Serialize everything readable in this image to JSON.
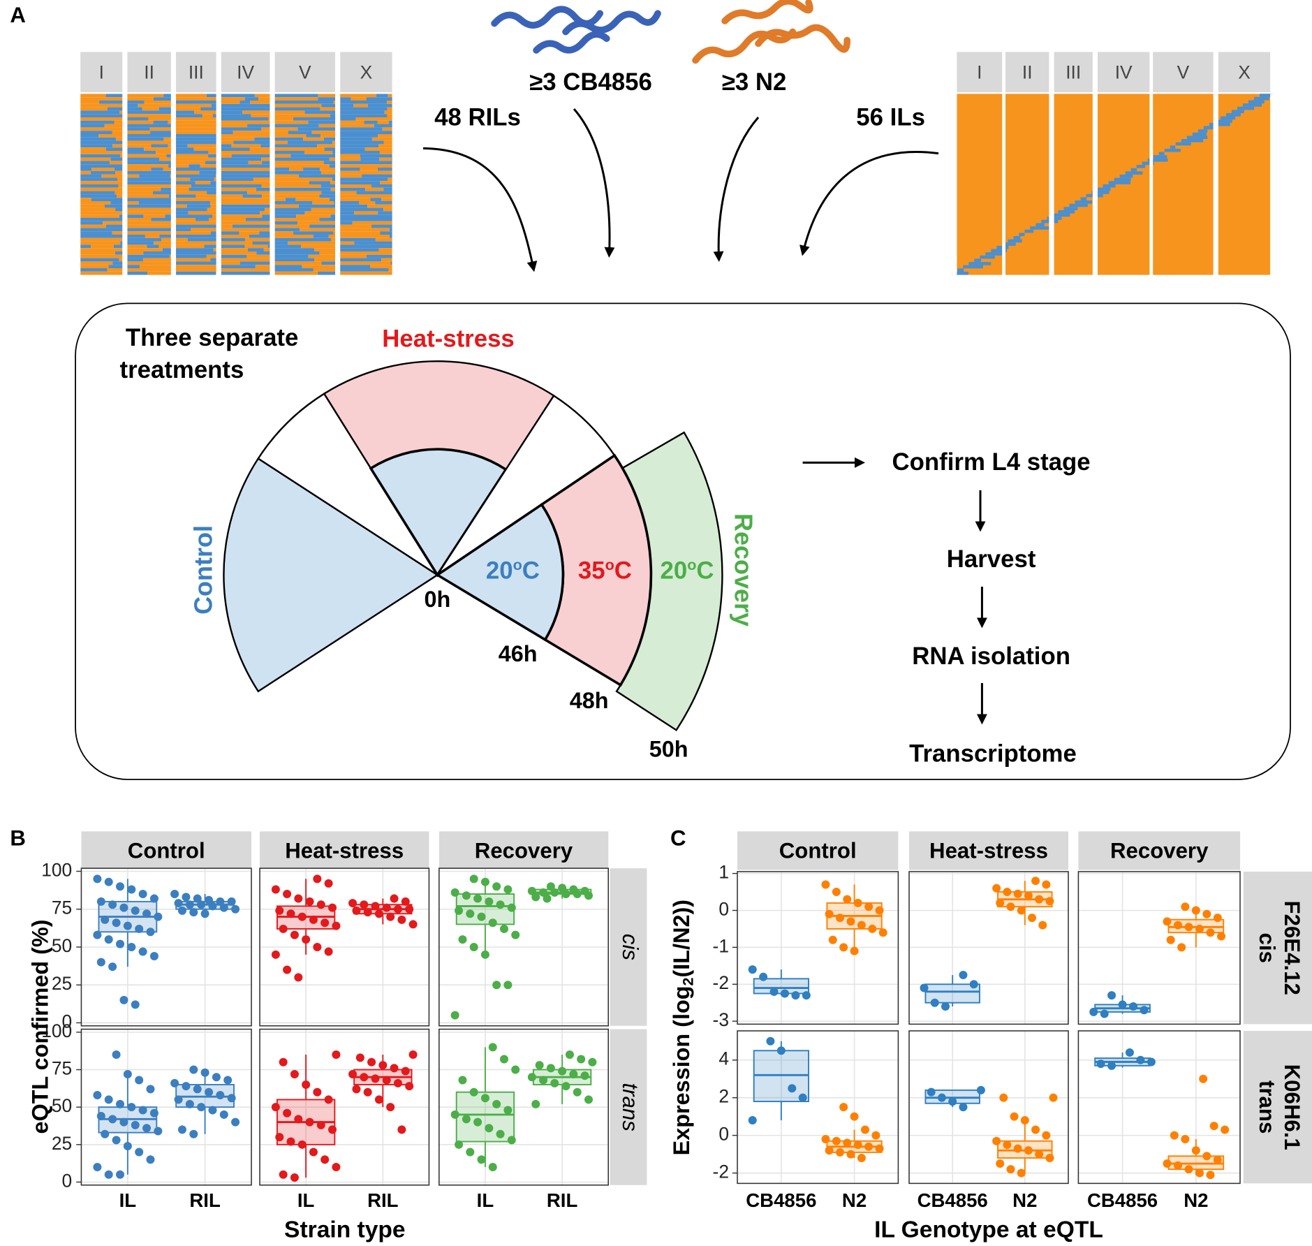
{
  "panel_a": {
    "label": "A",
    "left_chromosomes": [
      "I",
      "II",
      "III",
      "IV",
      "V",
      "X"
    ],
    "right_chromosomes": [
      "I",
      "II",
      "III",
      "IV",
      "V",
      "X"
    ],
    "cb4856": "≥3 CB4856",
    "n2": "≥3 N2",
    "rils": "48 RILs",
    "ils": "56 ILs",
    "treatments": [
      "Three separate",
      "treatments"
    ],
    "heat_stress": "Heat-stress",
    "control": "Control",
    "recovery": "Recovery",
    "temps": [
      [
        "20",
        "o",
        "C"
      ],
      [
        "35",
        "o",
        "C"
      ],
      [
        "20",
        "o",
        "C"
      ]
    ],
    "times": [
      "0h",
      "46h",
      "48h",
      "50h"
    ],
    "steps": [
      "Confirm L4 stage",
      "Harvest",
      "RNA isolation",
      "Transcriptome"
    ]
  },
  "chart_data": [
    {
      "type": "box",
      "panel_label": "B",
      "x_label": "Strain type",
      "y_label": "eQTL confirmed (%)",
      "facets": [
        "Control",
        "Heat-stress",
        "Recovery"
      ],
      "categories": [
        "IL",
        "RIL"
      ],
      "color_by": "facet",
      "colors": [
        "#3b7fc0",
        "#e3191c",
        "#4cae48"
      ],
      "grid": true,
      "rows": [
        {
          "label": [
            "cis"
          ],
          "ylim": [
            -2,
            102
          ],
          "yticks": [
            0,
            25,
            50,
            75,
            100
          ]
        },
        {
          "label": [
            "trans"
          ],
          "ylim": [
            -2,
            102
          ],
          "yticks": [
            0,
            25,
            50,
            75,
            100
          ]
        }
      ],
      "groups": [
        [
          [
            {
              "whislo": 37,
              "q1": 60,
              "med": 70,
              "q3": 80,
              "whishi": 95,
              "points": [
                95,
                93,
                90,
                88,
                85,
                82,
                80,
                78,
                76,
                74,
                72,
                70,
                68,
                66,
                64,
                62,
                60,
                58,
                55,
                52,
                50,
                47,
                44,
                40,
                37,
                15,
                12
              ]
            },
            {
              "whislo": 72,
              "q1": 75,
              "med": 78,
              "q3": 80,
              "whishi": 85,
              "points": [
                85,
                83,
                82,
                81,
                80,
                80,
                79,
                78,
                78,
                77,
                76,
                75,
                74,
                73,
                72
              ]
            }
          ],
          [
            {
              "whislo": 45,
              "q1": 62,
              "med": 70,
              "q3": 77,
              "whishi": 95,
              "points": [
                95,
                92,
                88,
                85,
                82,
                80,
                78,
                76,
                74,
                72,
                70,
                68,
                66,
                64,
                62,
                58,
                55,
                50,
                47,
                45,
                35,
                30
              ]
            },
            {
              "whislo": 65,
              "q1": 72,
              "med": 75,
              "q3": 78,
              "whishi": 82,
              "points": [
                82,
                80,
                79,
                78,
                77,
                76,
                75,
                75,
                74,
                73,
                72,
                70,
                68,
                65
              ]
            }
          ],
          [
            {
              "whislo": 45,
              "q1": 65,
              "med": 77,
              "q3": 85,
              "whishi": 95,
              "points": [
                95,
                93,
                90,
                88,
                86,
                84,
                82,
                80,
                78,
                76,
                74,
                72,
                70,
                66,
                62,
                58,
                55,
                50,
                45,
                25,
                25,
                5
              ]
            },
            {
              "whislo": 82,
              "q1": 85,
              "med": 86,
              "q3": 88,
              "whishi": 90,
              "points": [
                90,
                89,
                88,
                87,
                87,
                86,
                86,
                85,
                85,
                84,
                83,
                82
              ]
            }
          ]
        ],
        [
          [
            {
              "whislo": 5,
              "q1": 33,
              "med": 42,
              "q3": 50,
              "whishi": 72,
              "points": [
                85,
                72,
                68,
                62,
                58,
                55,
                52,
                50,
                48,
                46,
                44,
                42,
                40,
                38,
                36,
                34,
                32,
                28,
                24,
                20,
                15,
                10,
                5,
                5
              ]
            },
            {
              "whislo": 32,
              "q1": 50,
              "med": 57,
              "q3": 65,
              "whishi": 75,
              "points": [
                75,
                73,
                70,
                68,
                66,
                64,
                62,
                60,
                58,
                56,
                55,
                52,
                50,
                48,
                45,
                40,
                35,
                32
              ]
            }
          ],
          [
            {
              "whislo": 3,
              "q1": 25,
              "med": 40,
              "q3": 55,
              "whishi": 85,
              "points": [
                85,
                80,
                72,
                65,
                60,
                55,
                50,
                46,
                42,
                40,
                38,
                35,
                30,
                27,
                25,
                20,
                15,
                10,
                5,
                3
              ]
            },
            {
              "whislo": 50,
              "q1": 65,
              "med": 70,
              "q3": 75,
              "whishi": 85,
              "points": [
                85,
                83,
                80,
                78,
                76,
                74,
                72,
                70,
                69,
                68,
                66,
                64,
                62,
                60,
                55,
                50,
                35
              ]
            }
          ],
          [
            {
              "whislo": 10,
              "q1": 27,
              "med": 45,
              "q3": 60,
              "whishi": 90,
              "points": [
                90,
                82,
                75,
                68,
                60,
                56,
                52,
                48,
                45,
                42,
                40,
                36,
                32,
                28,
                25,
                20,
                15,
                10
              ]
            },
            {
              "whislo": 52,
              "q1": 65,
              "med": 70,
              "q3": 75,
              "whishi": 85,
              "points": [
                85,
                82,
                80,
                78,
                76,
                74,
                72,
                71,
                70,
                68,
                66,
                64,
                60,
                55,
                52
              ]
            }
          ]
        ]
      ]
    },
    {
      "type": "box",
      "panel_label": "C",
      "x_label": "IL Genotype at eQTL",
      "y_label": {
        "text": "Expression (log",
        "sub": "2",
        "rest": "(IL/N2))"
      },
      "facets": [
        "Control",
        "Heat-stress",
        "Recovery"
      ],
      "categories": [
        "CB4856",
        "N2"
      ],
      "color_by": "category",
      "colors": [
        "#2f7fc1",
        "#ff8000"
      ],
      "grid": true,
      "rows": [
        {
          "label": [
            "F26E4.12",
            "cis"
          ],
          "ylim": [
            -3.08,
            1.05
          ],
          "yticks": [
            -3,
            -2,
            -1,
            0,
            1
          ]
        },
        {
          "label": [
            "K06H6.1",
            "trans"
          ],
          "ylim": [
            -2.55,
            5.55
          ],
          "yticks": [
            -2,
            0,
            2,
            4
          ]
        }
      ],
      "groups": [
        [
          [
            {
              "whislo": -2.3,
              "q1": -2.25,
              "med": -2.1,
              "q3": -1.85,
              "whishi": -1.6,
              "points": [
                -1.6,
                -1.8,
                -2.2,
                -2.25,
                -2.3,
                -2.3
              ]
            },
            {
              "whislo": -1.1,
              "q1": -0.5,
              "med": -0.15,
              "q3": 0.2,
              "whishi": 0.7,
              "points": [
                0.7,
                0.5,
                0.3,
                0.2,
                0.1,
                0,
                -0.1,
                -0.2,
                -0.3,
                -0.4,
                -0.5,
                -0.6,
                -0.8,
                -1.0,
                -1.1
              ]
            }
          ],
          [
            {
              "whislo": -2.6,
              "q1": -2.5,
              "med": -2.2,
              "q3": -2.0,
              "whishi": -1.75,
              "points": [
                -1.75,
                -2.0,
                -2.1,
                -2.5,
                -2.6
              ]
            },
            {
              "whislo": -0.4,
              "q1": 0.1,
              "med": 0.3,
              "q3": 0.5,
              "whishi": 0.8,
              "points": [
                0.8,
                0.7,
                0.6,
                0.5,
                0.45,
                0.4,
                0.3,
                0.25,
                0.2,
                0.1,
                0,
                -0.2,
                -0.4
              ]
            }
          ],
          [
            {
              "whislo": -2.8,
              "q1": -2.75,
              "med": -2.65,
              "q3": -2.55,
              "whishi": -2.3,
              "points": [
                -2.3,
                -2.55,
                -2.6,
                -2.7,
                -2.75,
                -2.8
              ]
            },
            {
              "whislo": -1.0,
              "q1": -0.6,
              "med": -0.45,
              "q3": -0.25,
              "whishi": 0.1,
              "points": [
                0.1,
                0,
                -0.1,
                -0.2,
                -0.3,
                -0.4,
                -0.45,
                -0.5,
                -0.6,
                -0.7,
                -0.8,
                -1.0
              ]
            }
          ]
        ],
        [
          [
            {
              "whislo": 0.8,
              "q1": 1.8,
              "med": 3.2,
              "q3": 4.5,
              "whishi": 5,
              "points": [
                5,
                4.5,
                2.5,
                2,
                0.8
              ]
            },
            {
              "whislo": -1.2,
              "q1": -0.9,
              "med": -0.6,
              "q3": -0.3,
              "whishi": 0.3,
              "points": [
                1.5,
                1,
                0.3,
                0,
                -0.2,
                -0.3,
                -0.4,
                -0.5,
                -0.6,
                -0.7,
                -0.8,
                -0.9,
                -1.0,
                -1.2
              ]
            }
          ],
          [
            {
              "whislo": 1.5,
              "q1": 1.7,
              "med": 2.0,
              "q3": 2.4,
              "whishi": 2.4,
              "points": [
                2.4,
                2.3,
                2.0,
                1.8,
                1.5
              ]
            },
            {
              "whislo": -2,
              "q1": -1.2,
              "med": -0.8,
              "q3": -0.3,
              "whishi": 0.8,
              "points": [
                2,
                2,
                1,
                0.8,
                0.3,
                0,
                -0.3,
                -0.5,
                -0.7,
                -0.8,
                -1,
                -1.2,
                -1.5,
                -1.8,
                -2
              ]
            }
          ],
          [
            {
              "whislo": 3.6,
              "q1": 3.7,
              "med": 3.9,
              "q3": 4.1,
              "whishi": 4.4,
              "points": [
                4.4,
                4.0,
                3.9,
                3.8,
                3.7
              ]
            },
            {
              "whislo": -2.1,
              "q1": -1.8,
              "med": -1.5,
              "q3": -1.1,
              "whishi": -0.2,
              "points": [
                3,
                0.5,
                0.3,
                0,
                -0.2,
                -0.8,
                -1.1,
                -1.3,
                -1.5,
                -1.6,
                -1.8,
                -2,
                -2.1
              ]
            }
          ]
        ]
      ]
    }
  ]
}
